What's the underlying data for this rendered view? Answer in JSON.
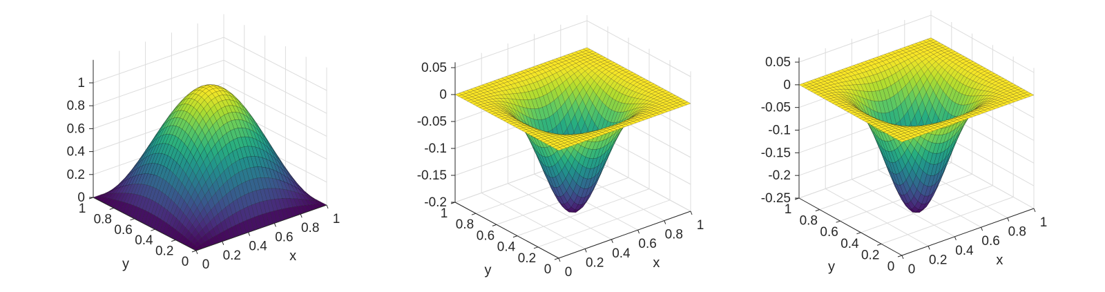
{
  "chart_data": [
    {
      "type": "surface",
      "function": "sin(pi*x)*sin(pi*y)",
      "x_range": [
        0,
        1
      ],
      "y_range": [
        0,
        1
      ],
      "zlim": [
        0,
        1.2
      ],
      "colormap": "viridis",
      "grid": true,
      "xlabel": "x",
      "ylabel": "y",
      "zlabel": "",
      "x_ticks": [
        "0",
        "0.2",
        "0.4",
        "0.6",
        "0.8",
        "1"
      ],
      "y_ticks": [
        "0",
        "0.2",
        "0.4",
        "0.6",
        "0.8",
        "1"
      ],
      "z_ticks": [
        "0",
        "0.2",
        "0.4",
        "0.6",
        "0.8",
        "1"
      ],
      "z_tick_values": [
        0,
        0.2,
        0.4,
        0.6,
        0.8,
        1
      ],
      "z_values": {
        "min": 0,
        "max": 1,
        "at_center": 1
      }
    },
    {
      "type": "surface",
      "function": "-0.21*(sin(pi*x)*sin(pi*y))^3",
      "x_range": [
        0,
        1
      ],
      "y_range": [
        0,
        1
      ],
      "zlim": [
        -0.2,
        0.06
      ],
      "colormap": "viridis",
      "grid": true,
      "xlabel": "x",
      "ylabel": "y",
      "zlabel": "",
      "x_ticks": [
        "0",
        "0.2",
        "0.4",
        "0.6",
        "0.8",
        "1"
      ],
      "y_ticks": [
        "0",
        "0.2",
        "0.4",
        "0.6",
        "0.8",
        "1"
      ],
      "z_ticks": [
        "-0.2",
        "-0.15",
        "-0.1",
        "-0.05",
        "0",
        "0.05"
      ],
      "z_tick_values": [
        -0.2,
        -0.15,
        -0.1,
        -0.05,
        0,
        0.05
      ],
      "z_values": {
        "min": -0.21,
        "max": 0,
        "at_center": -0.21
      }
    },
    {
      "type": "surface",
      "function": "-0.27*(sin(pi*x)*sin(pi*y))^3",
      "x_range": [
        0,
        1
      ],
      "y_range": [
        0,
        1
      ],
      "zlim": [
        -0.25,
        0.06
      ],
      "colormap": "viridis",
      "grid": true,
      "xlabel": "x",
      "ylabel": "y",
      "zlabel": "",
      "x_ticks": [
        "0",
        "0.2",
        "0.4",
        "0.6",
        "0.8",
        "1"
      ],
      "y_ticks": [
        "0",
        "0.2",
        "0.4",
        "0.6",
        "0.8",
        "1"
      ],
      "z_ticks": [
        "-0.25",
        "-0.2",
        "-0.15",
        "-0.1",
        "-0.05",
        "0",
        "0.05"
      ],
      "z_tick_values": [
        -0.25,
        -0.2,
        -0.15,
        -0.1,
        -0.05,
        0,
        0.05
      ],
      "z_values": {
        "min": -0.27,
        "max": 0,
        "at_center": -0.27
      }
    }
  ],
  "colors": {
    "axis": "#262626",
    "grid": "#dcdcdc",
    "viridis": [
      "#440154",
      "#472d7b",
      "#3b528b",
      "#2c728e",
      "#21918c",
      "#28ae80",
      "#5ec962",
      "#addc30",
      "#fde725"
    ]
  }
}
